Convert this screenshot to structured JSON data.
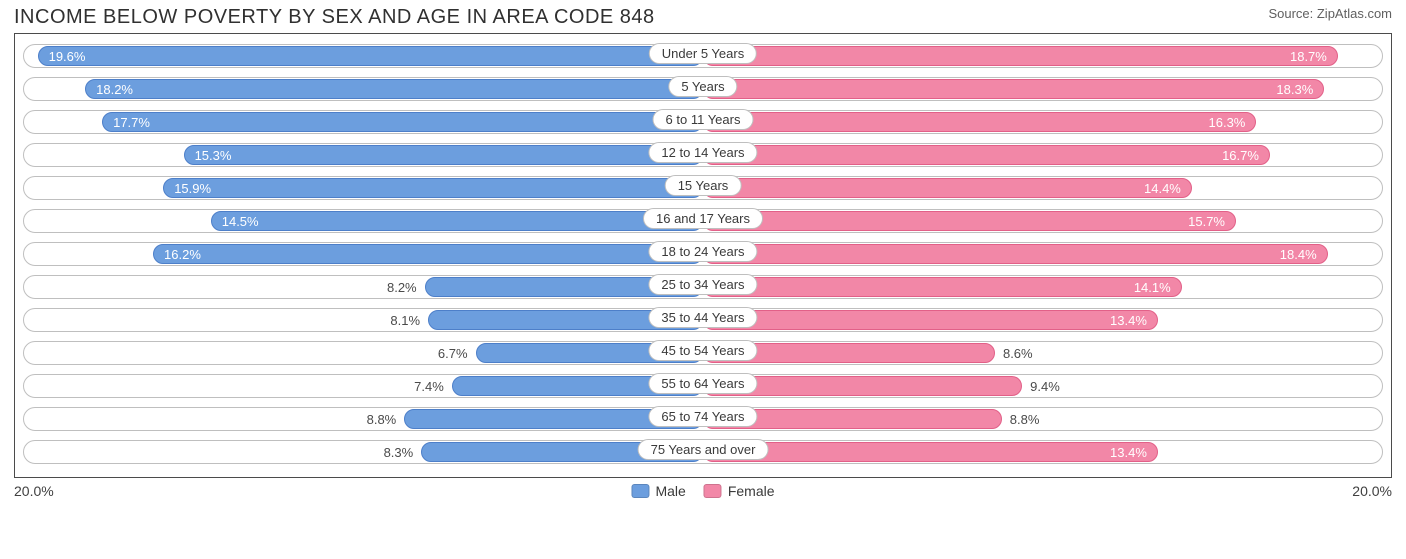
{
  "title": "INCOME BELOW POVERTY BY SEX AND AGE IN AREA CODE 848",
  "source": "Source: ZipAtlas.com",
  "axis_max": 20.0,
  "axis_label": "20.0%",
  "colors": {
    "male": {
      "fill": "#6c9ede",
      "border": "#4d7fc9"
    },
    "female": {
      "fill": "#f287a7",
      "border": "#e26088"
    },
    "track_border": "#bfbfbf",
    "bar_text": "#ffffff",
    "out_text": "#4a4a4a",
    "title_text": "#303030",
    "frame_border": "#4b4b4b"
  },
  "legend": {
    "male": "Male",
    "female": "Female"
  },
  "label_inside_threshold": 10.0,
  "rows": [
    {
      "category": "Under 5 Years",
      "male": 19.6,
      "female": 18.7
    },
    {
      "category": "5 Years",
      "male": 18.2,
      "female": 18.3
    },
    {
      "category": "6 to 11 Years",
      "male": 17.7,
      "female": 16.3
    },
    {
      "category": "12 to 14 Years",
      "male": 15.3,
      "female": 16.7
    },
    {
      "category": "15 Years",
      "male": 15.9,
      "female": 14.4
    },
    {
      "category": "16 and 17 Years",
      "male": 14.5,
      "female": 15.7
    },
    {
      "category": "18 to 24 Years",
      "male": 16.2,
      "female": 18.4
    },
    {
      "category": "25 to 34 Years",
      "male": 8.2,
      "female": 14.1
    },
    {
      "category": "35 to 44 Years",
      "male": 8.1,
      "female": 13.4
    },
    {
      "category": "45 to 54 Years",
      "male": 6.7,
      "female": 8.6
    },
    {
      "category": "55 to 64 Years",
      "male": 7.4,
      "female": 9.4
    },
    {
      "category": "65 to 74 Years",
      "male": 8.8,
      "female": 8.8
    },
    {
      "category": "75 Years and over",
      "male": 8.3,
      "female": 13.4
    }
  ]
}
